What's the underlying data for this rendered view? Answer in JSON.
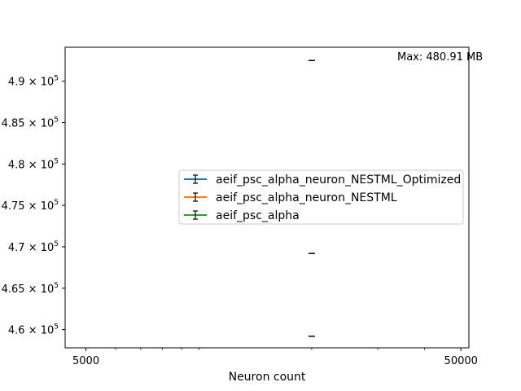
{
  "chart_data": {
    "type": "scatter",
    "title": "",
    "xlabel": "Neuron count",
    "ylabel": "",
    "xscale": "log",
    "xlim": [
      4400,
      52500
    ],
    "ylim": [
      457800,
      494100
    ],
    "x_ticks": [
      {
        "value": 5000,
        "label": "5000"
      },
      {
        "value": 50000,
        "label": "50000"
      }
    ],
    "x_minor_ticks": [
      6000,
      7000,
      8000,
      9000,
      10000,
      20000,
      30000,
      40000
    ],
    "y_ticks": [
      {
        "value": 460000,
        "mantissa": "4.6"
      },
      {
        "value": 465000,
        "mantissa": "4.65"
      },
      {
        "value": 470000,
        "mantissa": "4.7"
      },
      {
        "value": 475000,
        "mantissa": "4.75"
      },
      {
        "value": 480000,
        "mantissa": "4.8"
      },
      {
        "value": 485000,
        "mantissa": "4.85"
      },
      {
        "value": 490000,
        "mantissa": "4.9"
      }
    ],
    "y_tick_suffix": "× 10",
    "y_tick_exponent": "5",
    "series": [
      {
        "name": "aeif_psc_alpha_neuron_NESTML_Optimized",
        "color": "#1f77b4",
        "points": [
          {
            "x": 20000,
            "y": 492500
          }
        ]
      },
      {
        "name": "aeif_psc_alpha_neuron_NESTML",
        "color": "#ff7f0e",
        "points": [
          {
            "x": 20000,
            "y": 469200
          }
        ]
      },
      {
        "name": "aeif_psc_alpha",
        "color": "#2ca02c",
        "points": [
          {
            "x": 20000,
            "y": 459200
          }
        ]
      }
    ],
    "annotation": "Max: 480.91 MB",
    "legend_position": "center-right",
    "grid": false
  }
}
